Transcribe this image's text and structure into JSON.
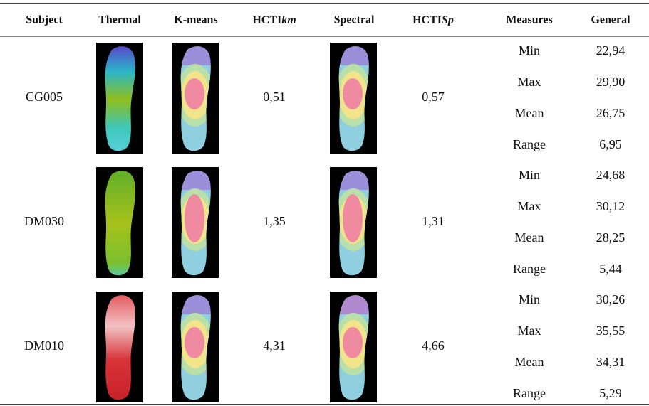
{
  "table": {
    "header": [
      "Subject",
      "Thermal",
      "K-means",
      {
        "text": "HCTI",
        "emphasis": "km"
      },
      "Spectral",
      {
        "text": "HCTI",
        "emphasis": "Sp"
      },
      "Measures",
      "General"
    ],
    "rows": [
      {
        "subject": "CG005",
        "hcti_km": "0,51",
        "hcti_sp": "0,57",
        "measures": [
          [
            "Min",
            "22,94"
          ],
          [
            "Max",
            "29,90"
          ],
          [
            "Mean",
            "26,75"
          ],
          [
            "Range",
            "6,95"
          ]
        ]
      },
      {
        "subject": "DM030",
        "hcti_km": "1,35",
        "hcti_sp": "1,31",
        "measures": [
          [
            "Min",
            "24,68"
          ],
          [
            "Max",
            "30,12"
          ],
          [
            "Mean",
            "28,25"
          ],
          [
            "Range",
            "5,44"
          ]
        ]
      },
      {
        "subject": "DM010",
        "hcti_km": "4,31",
        "hcti_sp": "4,66",
        "measures": [
          [
            "Min",
            "30,26"
          ],
          [
            "Max",
            "35,55"
          ],
          [
            "Mean",
            "34,31"
          ],
          [
            "Range",
            "5,29"
          ]
        ]
      }
    ]
  }
}
